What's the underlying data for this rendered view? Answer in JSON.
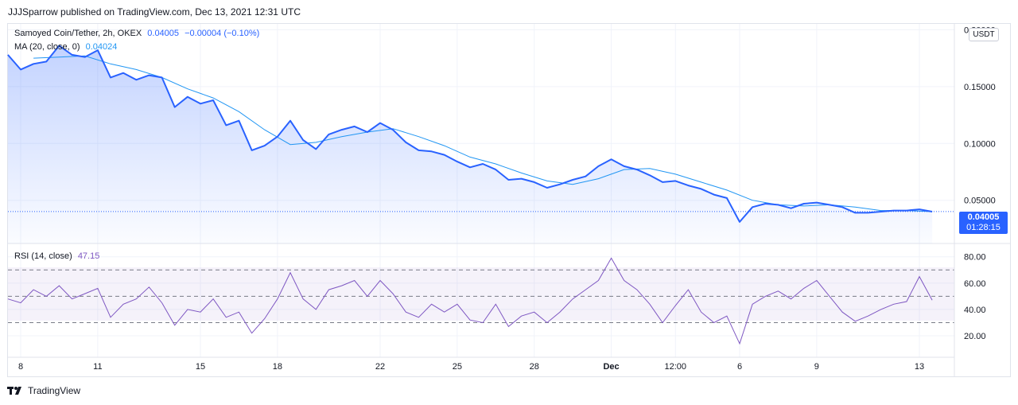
{
  "header": {
    "published": "JJJSparrow published on TradingView.com, Dec 13, 2021 12:31 UTC"
  },
  "legend": {
    "symbol": "Samoyed Coin/Tether, 2h, OKEX",
    "last": "0.04005",
    "change": "−0.00004 (−0.10%)",
    "ma_label": "MA (20, close, 0)",
    "ma_value": "0.04024",
    "rsi_label": "RSI (14, close)",
    "rsi_value": "47.15"
  },
  "unit_button": "USDT",
  "price_tag": {
    "price": "0.04005",
    "countdown": "01:28:15"
  },
  "brand": {
    "name": "TradingView"
  },
  "colors": {
    "price": "#2962ff",
    "ma": "#2196f3",
    "rsi": "#7e57c2",
    "grid": "#f0f3fa"
  },
  "chart_data": [
    {
      "type": "area",
      "title": "Samoyed Coin/Tether, 2h, OKEX",
      "y_ticks": [
        "0.05000",
        "0.10000",
        "0.15000",
        "0.20000"
      ],
      "y_tick_values": [
        0.05,
        0.1,
        0.15,
        0.2
      ],
      "ylim": [
        0.019,
        0.201
      ],
      "x_ticks": [
        "8",
        "11",
        "15",
        "18",
        "22",
        "25",
        "28",
        "Dec",
        "12:00",
        "6",
        "9",
        "13"
      ],
      "x_tick_dates": [
        "2021-11-08",
        "2021-11-11",
        "2021-11-15",
        "2021-11-18",
        "2021-11-22",
        "2021-11-25",
        "2021-11-28",
        "2021-12-01",
        "2021-12-03 12:00",
        "2021-12-06",
        "2021-12-09",
        "2021-12-13"
      ],
      "series": [
        {
          "name": "Samoyed Coin/Tether",
          "points": [
            [
              "2021-11-07 12:00",
              0.178
            ],
            [
              "2021-11-08 00:00",
              0.165
            ],
            [
              "2021-11-08 12:00",
              0.17
            ],
            [
              "2021-11-09 00:00",
              0.172
            ],
            [
              "2021-11-09 12:00",
              0.186
            ],
            [
              "2021-11-10 00:00",
              0.178
            ],
            [
              "2021-11-10 12:00",
              0.176
            ],
            [
              "2021-11-11 00:00",
              0.182
            ],
            [
              "2021-11-11 12:00",
              0.158
            ],
            [
              "2021-11-12 00:00",
              0.162
            ],
            [
              "2021-11-12 12:00",
              0.156
            ],
            [
              "2021-11-13 00:00",
              0.16
            ],
            [
              "2021-11-13 12:00",
              0.158
            ],
            [
              "2021-11-14 00:00",
              0.132
            ],
            [
              "2021-11-14 12:00",
              0.141
            ],
            [
              "2021-11-15 00:00",
              0.135
            ],
            [
              "2021-11-15 12:00",
              0.138
            ],
            [
              "2021-11-16 00:00",
              0.116
            ],
            [
              "2021-11-16 12:00",
              0.12
            ],
            [
              "2021-11-17 00:00",
              0.094
            ],
            [
              "2021-11-17 12:00",
              0.098
            ],
            [
              "2021-11-18 00:00",
              0.106
            ],
            [
              "2021-11-18 12:00",
              0.12
            ],
            [
              "2021-11-19 00:00",
              0.103
            ],
            [
              "2021-11-19 12:00",
              0.095
            ],
            [
              "2021-11-20 00:00",
              0.108
            ],
            [
              "2021-11-20 12:00",
              0.112
            ],
            [
              "2021-11-21 00:00",
              0.115
            ],
            [
              "2021-11-21 12:00",
              0.11
            ],
            [
              "2021-11-22 00:00",
              0.118
            ],
            [
              "2021-11-22 12:00",
              0.112
            ],
            [
              "2021-11-23 00:00",
              0.101
            ],
            [
              "2021-11-23 12:00",
              0.094
            ],
            [
              "2021-11-24 00:00",
              0.093
            ],
            [
              "2021-11-24 12:00",
              0.09
            ],
            [
              "2021-11-25 00:00",
              0.084
            ],
            [
              "2021-11-25 12:00",
              0.079
            ],
            [
              "2021-11-26 00:00",
              0.082
            ],
            [
              "2021-11-26 12:00",
              0.077
            ],
            [
              "2021-11-27 00:00",
              0.068
            ],
            [
              "2021-11-27 12:00",
              0.069
            ],
            [
              "2021-11-28 00:00",
              0.066
            ],
            [
              "2021-11-28 12:00",
              0.061
            ],
            [
              "2021-11-29 00:00",
              0.064
            ],
            [
              "2021-11-29 12:00",
              0.068
            ],
            [
              "2021-11-30 00:00",
              0.071
            ],
            [
              "2021-11-30 12:00",
              0.08
            ],
            [
              "2021-12-01 00:00",
              0.086
            ],
            [
              "2021-12-01 12:00",
              0.08
            ],
            [
              "2021-12-02 00:00",
              0.077
            ],
            [
              "2021-12-02 12:00",
              0.072
            ],
            [
              "2021-12-03 00:00",
              0.066
            ],
            [
              "2021-12-03 12:00",
              0.067
            ],
            [
              "2021-12-04 00:00",
              0.063
            ],
            [
              "2021-12-04 12:00",
              0.06
            ],
            [
              "2021-12-05 00:00",
              0.055
            ],
            [
              "2021-12-05 12:00",
              0.052
            ],
            [
              "2021-12-06 00:00",
              0.031
            ],
            [
              "2021-12-06 12:00",
              0.044
            ],
            [
              "2021-12-07 00:00",
              0.047
            ],
            [
              "2021-12-07 12:00",
              0.046
            ],
            [
              "2021-12-08 00:00",
              0.043
            ],
            [
              "2021-12-08 12:00",
              0.047
            ],
            [
              "2021-12-09 00:00",
              0.048
            ],
            [
              "2021-12-09 12:00",
              0.046
            ],
            [
              "2021-12-10 00:00",
              0.044
            ],
            [
              "2021-12-10 12:00",
              0.039
            ],
            [
              "2021-12-11 00:00",
              0.039
            ],
            [
              "2021-12-11 12:00",
              0.04
            ],
            [
              "2021-12-12 00:00",
              0.041
            ],
            [
              "2021-12-12 12:00",
              0.041
            ],
            [
              "2021-12-13 00:00",
              0.042
            ],
            [
              "2021-12-13 12:00",
              0.04
            ]
          ]
        },
        {
          "name": "MA (20, close, 0)",
          "points": [
            [
              "2021-11-08 12:00",
              0.175
            ],
            [
              "2021-11-09 12:00",
              0.176
            ],
            [
              "2021-11-10 12:00",
              0.177
            ],
            [
              "2021-11-11 12:00",
              0.17
            ],
            [
              "2021-11-12 12:00",
              0.165
            ],
            [
              "2021-11-13 12:00",
              0.158
            ],
            [
              "2021-11-14 12:00",
              0.148
            ],
            [
              "2021-11-15 12:00",
              0.14
            ],
            [
              "2021-11-16 12:00",
              0.128
            ],
            [
              "2021-11-17 12:00",
              0.112
            ],
            [
              "2021-11-18 12:00",
              0.099
            ],
            [
              "2021-11-19 12:00",
              0.101
            ],
            [
              "2021-11-20 12:00",
              0.106
            ],
            [
              "2021-11-21 12:00",
              0.11
            ],
            [
              "2021-11-22 12:00",
              0.113
            ],
            [
              "2021-11-23 12:00",
              0.106
            ],
            [
              "2021-11-24 12:00",
              0.098
            ],
            [
              "2021-11-25 12:00",
              0.088
            ],
            [
              "2021-11-26 12:00",
              0.082
            ],
            [
              "2021-11-27 12:00",
              0.074
            ],
            [
              "2021-11-28 12:00",
              0.067
            ],
            [
              "2021-11-29 12:00",
              0.064
            ],
            [
              "2021-11-30 12:00",
              0.069
            ],
            [
              "2021-12-01 12:00",
              0.077
            ],
            [
              "2021-12-02 12:00",
              0.078
            ],
            [
              "2021-12-03 12:00",
              0.073
            ],
            [
              "2021-12-04 12:00",
              0.066
            ],
            [
              "2021-12-05 12:00",
              0.059
            ],
            [
              "2021-12-06 12:00",
              0.05
            ],
            [
              "2021-12-07 12:00",
              0.046
            ],
            [
              "2021-12-08 12:00",
              0.045
            ],
            [
              "2021-12-09 12:00",
              0.046
            ],
            [
              "2021-12-10 12:00",
              0.044
            ],
            [
              "2021-12-11 12:00",
              0.041
            ],
            [
              "2021-12-12 12:00",
              0.041
            ],
            [
              "2021-12-13 12:00",
              0.04
            ]
          ]
        }
      ],
      "last_price": 0.04005
    },
    {
      "type": "line",
      "title": "RSI (14, close)",
      "y_ticks": [
        "20.00",
        "40.00",
        "60.00",
        "80.00"
      ],
      "y_tick_values": [
        20,
        40,
        60,
        80
      ],
      "ylim": [
        5.5,
        87.7
      ],
      "bands": [
        30,
        50,
        70
      ],
      "series": [
        {
          "name": "RSI (14, close)",
          "points": [
            [
              "2021-11-07 12:00",
              48
            ],
            [
              "2021-11-08 00:00",
              45
            ],
            [
              "2021-11-08 12:00",
              55
            ],
            [
              "2021-11-09 00:00",
              50
            ],
            [
              "2021-11-09 12:00",
              58
            ],
            [
              "2021-11-10 00:00",
              48
            ],
            [
              "2021-11-10 12:00",
              52
            ],
            [
              "2021-11-11 00:00",
              56
            ],
            [
              "2021-11-11 12:00",
              34
            ],
            [
              "2021-11-12 00:00",
              44
            ],
            [
              "2021-11-12 12:00",
              48
            ],
            [
              "2021-11-13 00:00",
              57
            ],
            [
              "2021-11-13 12:00",
              45
            ],
            [
              "2021-11-14 00:00",
              28
            ],
            [
              "2021-11-14 12:00",
              40
            ],
            [
              "2021-11-15 00:00",
              38
            ],
            [
              "2021-11-15 12:00",
              48
            ],
            [
              "2021-11-16 00:00",
              34
            ],
            [
              "2021-11-16 12:00",
              38
            ],
            [
              "2021-11-17 00:00",
              22
            ],
            [
              "2021-11-17 12:00",
              33
            ],
            [
              "2021-11-18 00:00",
              48
            ],
            [
              "2021-11-18 12:00",
              68
            ],
            [
              "2021-11-19 00:00",
              48
            ],
            [
              "2021-11-19 12:00",
              40
            ],
            [
              "2021-11-20 00:00",
              55
            ],
            [
              "2021-11-20 12:00",
              58
            ],
            [
              "2021-11-21 00:00",
              62
            ],
            [
              "2021-11-21 12:00",
              50
            ],
            [
              "2021-11-22 00:00",
              62
            ],
            [
              "2021-11-22 12:00",
              52
            ],
            [
              "2021-11-23 00:00",
              38
            ],
            [
              "2021-11-23 12:00",
              34
            ],
            [
              "2021-11-24 00:00",
              44
            ],
            [
              "2021-11-24 12:00",
              38
            ],
            [
              "2021-11-25 00:00",
              44
            ],
            [
              "2021-11-25 12:00",
              32
            ],
            [
              "2021-11-26 00:00",
              30
            ],
            [
              "2021-11-26 12:00",
              44
            ],
            [
              "2021-11-27 00:00",
              27
            ],
            [
              "2021-11-27 12:00",
              35
            ],
            [
              "2021-11-28 00:00",
              38
            ],
            [
              "2021-11-28 12:00",
              30
            ],
            [
              "2021-11-29 00:00",
              38
            ],
            [
              "2021-11-29 12:00",
              48
            ],
            [
              "2021-11-30 00:00",
              55
            ],
            [
              "2021-11-30 12:00",
              62
            ],
            [
              "2021-12-01 00:00",
              79
            ],
            [
              "2021-12-01 12:00",
              62
            ],
            [
              "2021-12-02 00:00",
              55
            ],
            [
              "2021-12-02 12:00",
              44
            ],
            [
              "2021-12-03 00:00",
              30
            ],
            [
              "2021-12-03 12:00",
              43
            ],
            [
              "2021-12-04 00:00",
              55
            ],
            [
              "2021-12-04 12:00",
              38
            ],
            [
              "2021-12-05 00:00",
              30
            ],
            [
              "2021-12-05 12:00",
              35
            ],
            [
              "2021-12-06 00:00",
              14
            ],
            [
              "2021-12-06 12:00",
              44
            ],
            [
              "2021-12-07 00:00",
              50
            ],
            [
              "2021-12-07 12:00",
              54
            ],
            [
              "2021-12-08 00:00",
              48
            ],
            [
              "2021-12-08 12:00",
              56
            ],
            [
              "2021-12-09 00:00",
              62
            ],
            [
              "2021-12-09 12:00",
              50
            ],
            [
              "2021-12-10 00:00",
              38
            ],
            [
              "2021-12-10 12:00",
              31
            ],
            [
              "2021-12-11 00:00",
              35
            ],
            [
              "2021-12-11 12:00",
              40
            ],
            [
              "2021-12-12 00:00",
              44
            ],
            [
              "2021-12-12 12:00",
              46
            ],
            [
              "2021-12-13 00:00",
              65
            ],
            [
              "2021-12-13 12:00",
              47
            ]
          ]
        }
      ]
    }
  ]
}
